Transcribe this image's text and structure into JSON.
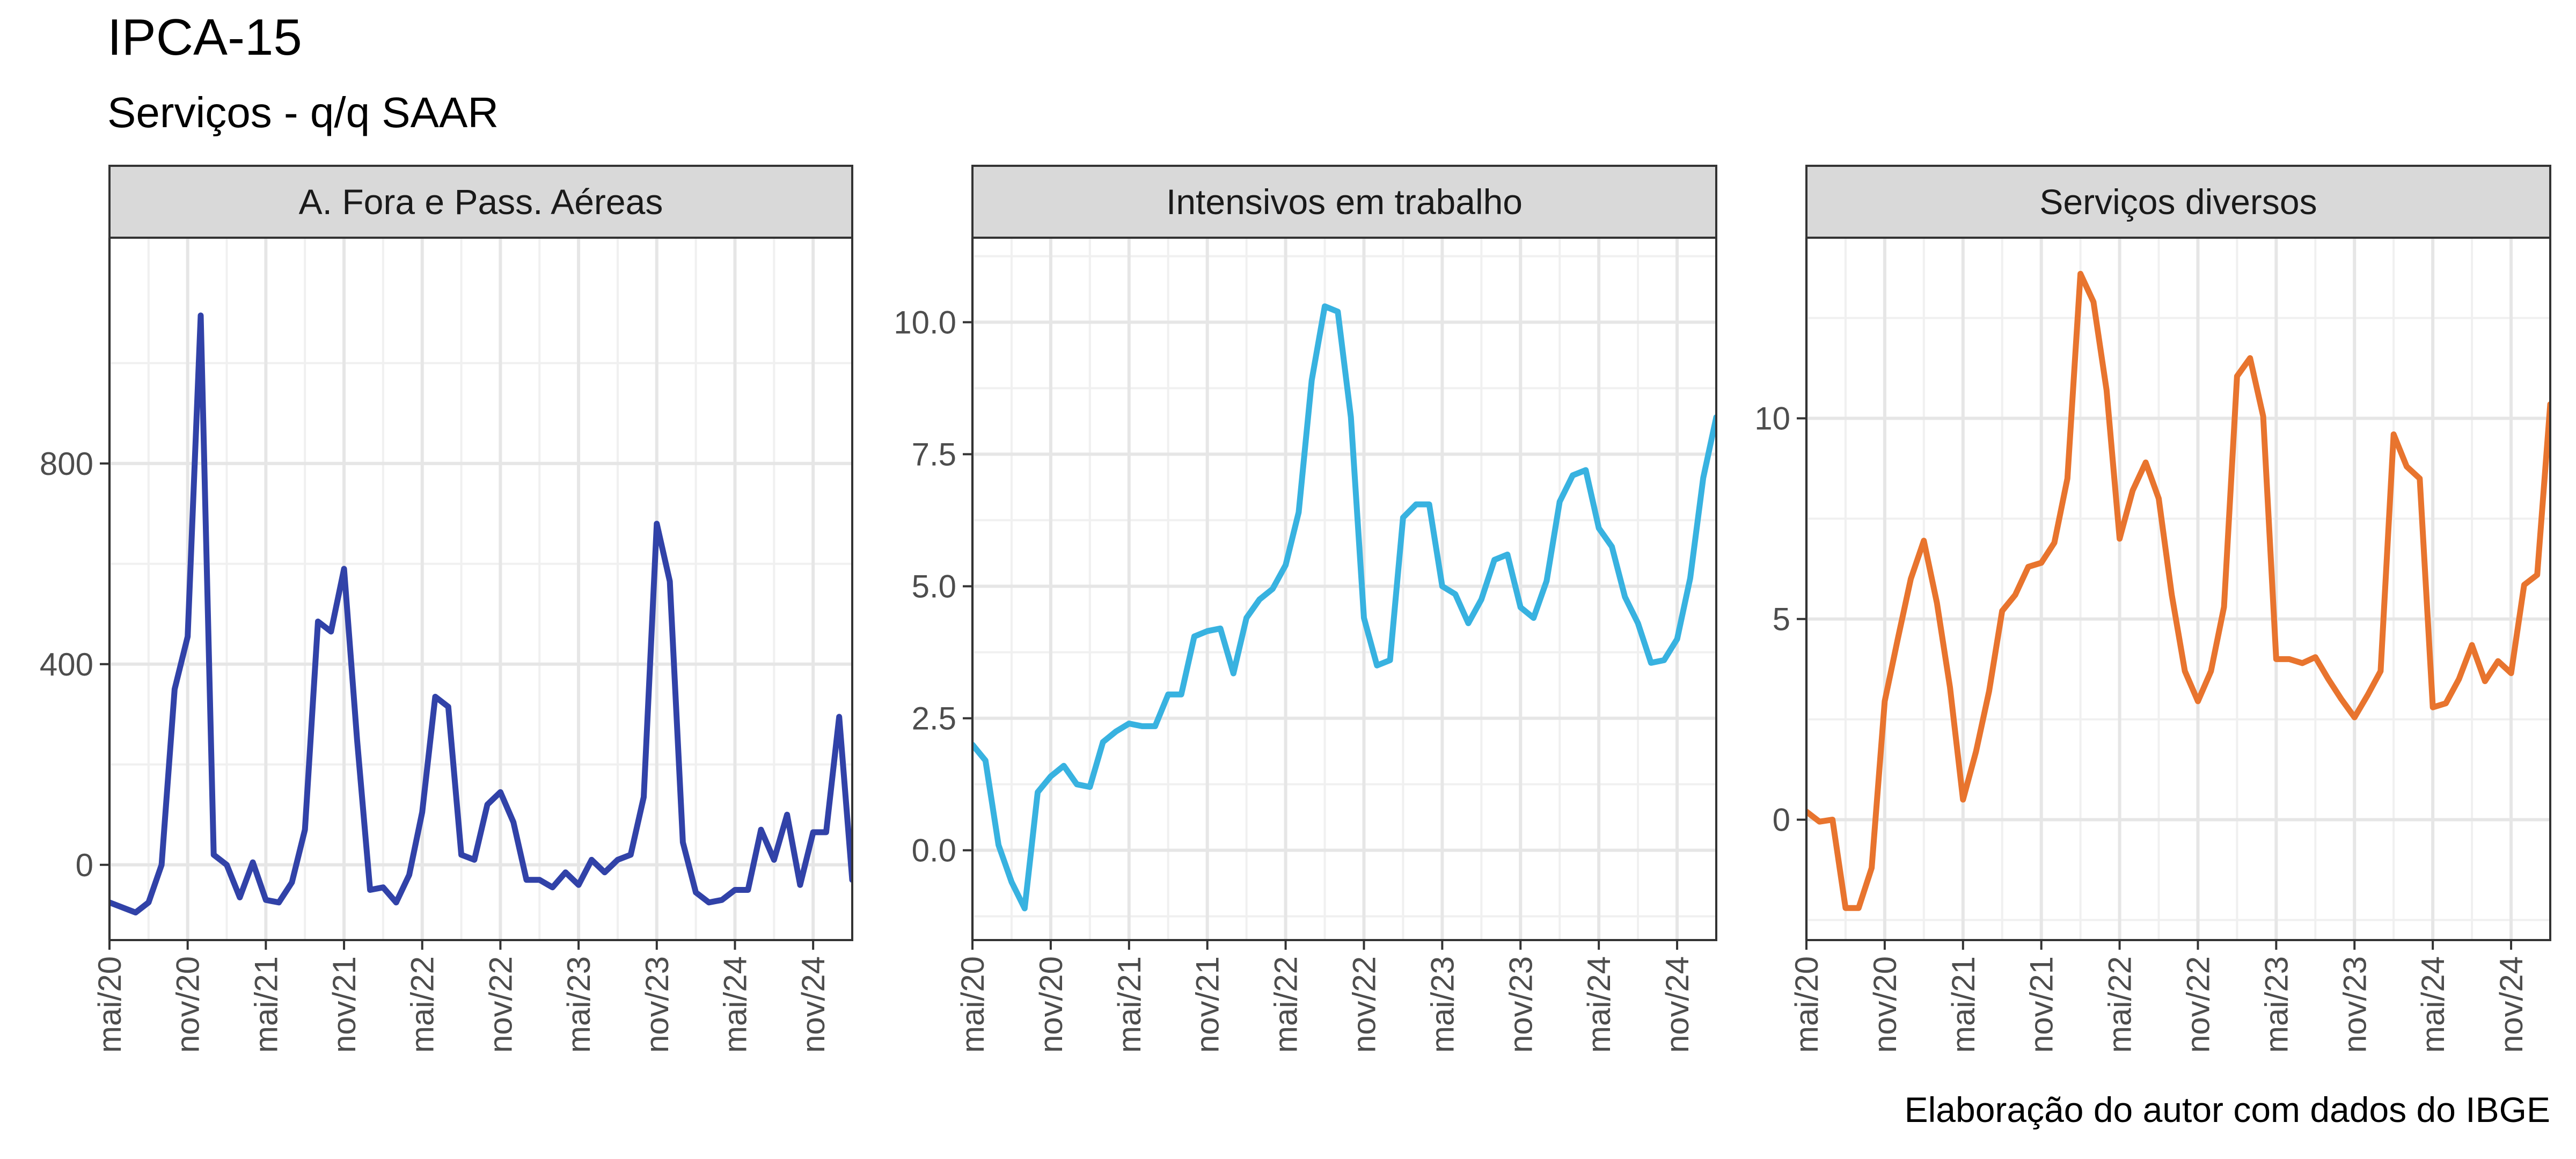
{
  "title": "IPCA-15",
  "subtitle": "Serviços - q/q SAAR",
  "caption": "Elaboração do autor com dados do IBGE",
  "chart_data": [
    {
      "type": "line",
      "panel": "A. Fora e Pass. Aéreas",
      "color": "#3142A8",
      "xlim": [
        "2020-05",
        "2025-02"
      ],
      "ylim": [
        -150,
        1250
      ],
      "yticks": [
        0,
        400,
        800
      ],
      "ytick_labels": [
        "0",
        "400",
        "800"
      ],
      "xticks": [
        "2020-05",
        "2020-11",
        "2021-05",
        "2021-11",
        "2022-05",
        "2022-11",
        "2023-05",
        "2023-11",
        "2024-05",
        "2024-11"
      ],
      "xtick_labels": [
        "mai/20",
        "nov/20",
        "mai/21",
        "nov/21",
        "mai/22",
        "nov/22",
        "mai/23",
        "nov/23",
        "mai/24",
        "nov/24"
      ],
      "series": [
        {
          "x": [
            "2020-05",
            "2020-06",
            "2020-07",
            "2020-08",
            "2020-09",
            "2020-10",
            "2020-11",
            "2020-12",
            "2021-01",
            "2021-02",
            "2021-03",
            "2021-04",
            "2021-05",
            "2021-06",
            "2021-07",
            "2021-08",
            "2021-09",
            "2021-10",
            "2021-11",
            "2021-12",
            "2022-01",
            "2022-02",
            "2022-03",
            "2022-04",
            "2022-05",
            "2022-06",
            "2022-07",
            "2022-08",
            "2022-09",
            "2022-10",
            "2022-11",
            "2022-12",
            "2023-01",
            "2023-02",
            "2023-03",
            "2023-04",
            "2023-05",
            "2023-06",
            "2023-07",
            "2023-08",
            "2023-09",
            "2023-10",
            "2023-11",
            "2023-12",
            "2024-01",
            "2024-02",
            "2024-03",
            "2024-04",
            "2024-05",
            "2024-06",
            "2024-07",
            "2024-08",
            "2024-09",
            "2024-10",
            "2024-11",
            "2024-12",
            "2025-01",
            "2025-02"
          ],
          "y": [
            -75,
            -85,
            -95,
            -75,
            0,
            350,
            455,
            1095,
            20,
            0,
            -65,
            5,
            -70,
            -75,
            -35,
            70,
            485,
            465,
            590,
            250,
            -50,
            -45,
            -75,
            -20,
            105,
            335,
            315,
            20,
            10,
            120,
            145,
            85,
            -30,
            -30,
            -45,
            -15,
            -40,
            10,
            -15,
            10,
            20,
            135,
            680,
            565,
            45,
            -55,
            -75,
            -70,
            -50,
            -50,
            70,
            10,
            100,
            -40,
            65,
            65,
            295,
            -30
          ]
        }
      ]
    },
    {
      "type": "line",
      "panel": "Intensivos em trabalho",
      "color": "#38B2E0",
      "xlim": [
        "2020-05",
        "2025-02"
      ],
      "ylim": [
        -1.7,
        11.6
      ],
      "yticks": [
        0,
        2.5,
        5,
        7.5,
        10
      ],
      "ytick_labels": [
        "0.0",
        "2.5",
        "5.0",
        "7.5",
        "10.0"
      ],
      "xticks": [
        "2020-05",
        "2020-11",
        "2021-05",
        "2021-11",
        "2022-05",
        "2022-11",
        "2023-05",
        "2023-11",
        "2024-05",
        "2024-11"
      ],
      "xtick_labels": [
        "mai/20",
        "nov/20",
        "mai/21",
        "nov/21",
        "mai/22",
        "nov/22",
        "mai/23",
        "nov/23",
        "mai/24",
        "nov/24"
      ],
      "series": [
        {
          "x": [
            "2020-05",
            "2020-06",
            "2020-07",
            "2020-08",
            "2020-09",
            "2020-10",
            "2020-11",
            "2020-12",
            "2021-01",
            "2021-02",
            "2021-03",
            "2021-04",
            "2021-05",
            "2021-06",
            "2021-07",
            "2021-08",
            "2021-09",
            "2021-10",
            "2021-11",
            "2021-12",
            "2022-01",
            "2022-02",
            "2022-03",
            "2022-04",
            "2022-05",
            "2022-06",
            "2022-07",
            "2022-08",
            "2022-09",
            "2022-10",
            "2022-11",
            "2022-12",
            "2023-01",
            "2023-02",
            "2023-03",
            "2023-04",
            "2023-05",
            "2023-06",
            "2023-07",
            "2023-08",
            "2023-09",
            "2023-10",
            "2023-11",
            "2023-12",
            "2024-01",
            "2024-02",
            "2024-03",
            "2024-04",
            "2024-05",
            "2024-06",
            "2024-07",
            "2024-08",
            "2024-09",
            "2024-10",
            "2024-11",
            "2024-12",
            "2025-01",
            "2025-02"
          ],
          "y": [
            2.0,
            1.7,
            0.1,
            -0.6,
            -1.1,
            1.1,
            1.4,
            1.6,
            1.25,
            1.2,
            2.05,
            2.25,
            2.4,
            2.35,
            2.35,
            2.95,
            2.95,
            4.05,
            4.15,
            4.2,
            3.35,
            4.4,
            4.75,
            4.95,
            5.4,
            6.4,
            8.9,
            10.3,
            10.2,
            8.2,
            4.4,
            3.5,
            3.6,
            6.3,
            6.55,
            6.55,
            5.0,
            4.85,
            4.3,
            4.75,
            5.5,
            5.6,
            4.6,
            4.4,
            5.1,
            6.6,
            7.1,
            7.2,
            6.1,
            5.75,
            4.8,
            4.3,
            3.55,
            3.6,
            4.0,
            5.15,
            7.05,
            8.2
          ]
        }
      ]
    },
    {
      "type": "line",
      "panel": "Serviços diversos",
      "color": "#E8742E",
      "xlim": [
        "2020-05",
        "2025-02"
      ],
      "ylim": [
        -3.0,
        14.5
      ],
      "yticks": [
        0,
        5,
        10
      ],
      "ytick_labels": [
        "0",
        "5",
        "10"
      ],
      "xticks": [
        "2020-05",
        "2020-11",
        "2021-05",
        "2021-11",
        "2022-05",
        "2022-11",
        "2023-05",
        "2023-11",
        "2024-05",
        "2024-11"
      ],
      "xtick_labels": [
        "mai/20",
        "nov/20",
        "mai/21",
        "nov/21",
        "mai/22",
        "nov/22",
        "mai/23",
        "nov/23",
        "mai/24",
        "nov/24"
      ],
      "series": [
        {
          "x": [
            "2020-05",
            "2020-06",
            "2020-07",
            "2020-08",
            "2020-09",
            "2020-10",
            "2020-11",
            "2020-12",
            "2021-01",
            "2021-02",
            "2021-03",
            "2021-04",
            "2021-05",
            "2021-06",
            "2021-07",
            "2021-08",
            "2021-09",
            "2021-10",
            "2021-11",
            "2021-12",
            "2022-01",
            "2022-02",
            "2022-03",
            "2022-04",
            "2022-05",
            "2022-06",
            "2022-07",
            "2022-08",
            "2022-09",
            "2022-10",
            "2022-11",
            "2022-12",
            "2023-01",
            "2023-02",
            "2023-03",
            "2023-04",
            "2023-05",
            "2023-06",
            "2023-07",
            "2023-08",
            "2023-09",
            "2023-10",
            "2023-11",
            "2023-12",
            "2024-01",
            "2024-02",
            "2024-03",
            "2024-04",
            "2024-05",
            "2024-06",
            "2024-07",
            "2024-08",
            "2024-09",
            "2024-10",
            "2024-11",
            "2024-12",
            "2025-01",
            "2025-02"
          ],
          "y": [
            0.2,
            -0.05,
            0.0,
            -2.2,
            -2.2,
            -1.2,
            2.95,
            4.5,
            6.0,
            6.95,
            5.4,
            3.3,
            0.5,
            1.7,
            3.2,
            5.2,
            5.6,
            6.3,
            6.4,
            6.9,
            8.5,
            13.6,
            12.9,
            10.7,
            7.0,
            8.2,
            8.9,
            8.0,
            5.6,
            3.7,
            2.95,
            3.7,
            5.3,
            11.05,
            11.5,
            10.05,
            4.0,
            4.0,
            3.9,
            4.05,
            3.5,
            3.0,
            2.55,
            3.1,
            3.7,
            9.6,
            8.8,
            8.5,
            2.8,
            2.9,
            3.5,
            4.35,
            3.45,
            3.95,
            3.65,
            5.85,
            6.1,
            10.35
          ]
        }
      ]
    }
  ]
}
